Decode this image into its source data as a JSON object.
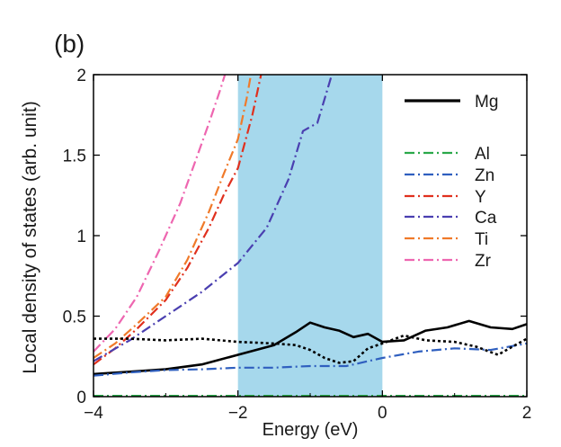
{
  "panel_label": "(b)",
  "chart_data": {
    "type": "line",
    "xlabel": "Energy (eV)",
    "ylabel": "Local density of states (arb. unit)",
    "xlim": [
      -4,
      2
    ],
    "ylim": [
      0,
      2
    ],
    "xticks": [
      -4,
      -2,
      0,
      2
    ],
    "yticks": [
      0,
      0.5,
      1,
      1.5,
      2
    ],
    "xtick_labels": [
      "−4",
      "−2",
      "0",
      "2"
    ],
    "ytick_labels": [
      "0",
      "0.5",
      "1",
      "1.5",
      "2"
    ],
    "highlight_band": {
      "x_start": -2,
      "x_end": 0,
      "color": "#a6d8ec"
    },
    "grid": false,
    "legend_position": "top-right",
    "series": [
      {
        "name": "Mg",
        "color": "#000000",
        "style": "solid",
        "points": [
          [
            -4,
            0.14
          ],
          [
            -3.5,
            0.155
          ],
          [
            -3,
            0.17
          ],
          [
            -2.5,
            0.2
          ],
          [
            -2,
            0.26
          ],
          [
            -1.5,
            0.32
          ],
          [
            -1.2,
            0.4
          ],
          [
            -1,
            0.46
          ],
          [
            -0.8,
            0.43
          ],
          [
            -0.6,
            0.41
          ],
          [
            -0.4,
            0.37
          ],
          [
            -0.2,
            0.39
          ],
          [
            0,
            0.34
          ],
          [
            0.3,
            0.35
          ],
          [
            0.6,
            0.41
          ],
          [
            0.9,
            0.43
          ],
          [
            1.2,
            0.47
          ],
          [
            1.5,
            0.43
          ],
          [
            1.8,
            0.42
          ],
          [
            2,
            0.45
          ]
        ]
      },
      {
        "name": "Al",
        "color": "#2aa84a",
        "style": "dashdot",
        "points": [
          [
            -4,
            0.005
          ],
          [
            -2,
            0.005
          ],
          [
            0,
            0.005
          ],
          [
            2,
            0.005
          ]
        ]
      },
      {
        "name": "Zn",
        "color": "#2f5fbf",
        "style": "dashdot",
        "points": [
          [
            -4,
            0.13
          ],
          [
            -3.5,
            0.15
          ],
          [
            -3,
            0.165
          ],
          [
            -2.5,
            0.17
          ],
          [
            -2,
            0.18
          ],
          [
            -1.5,
            0.18
          ],
          [
            -1,
            0.19
          ],
          [
            -0.5,
            0.19
          ],
          [
            0,
            0.24
          ],
          [
            0.5,
            0.28
          ],
          [
            1,
            0.3
          ],
          [
            1.5,
            0.29
          ],
          [
            2,
            0.33
          ]
        ]
      },
      {
        "name": "Y",
        "color": "#e0301e",
        "style": "dashdot",
        "points": [
          [
            -4,
            0.2
          ],
          [
            -3.7,
            0.3
          ],
          [
            -3.4,
            0.42
          ],
          [
            -3,
            0.6
          ],
          [
            -2.7,
            0.8
          ],
          [
            -2.4,
            1.05
          ],
          [
            -2.2,
            1.25
          ],
          [
            -2,
            1.42
          ],
          [
            -1.8,
            1.75
          ],
          [
            -1.68,
            2.0
          ]
        ]
      },
      {
        "name": "Ca",
        "color": "#4a3fb0",
        "style": "dashdot",
        "points": [
          [
            -4,
            0.22
          ],
          [
            -3.5,
            0.35
          ],
          [
            -3,
            0.5
          ],
          [
            -2.5,
            0.65
          ],
          [
            -2,
            0.83
          ],
          [
            -1.6,
            1.05
          ],
          [
            -1.3,
            1.35
          ],
          [
            -1.1,
            1.65
          ],
          [
            -0.9,
            1.7
          ],
          [
            -0.8,
            1.85
          ],
          [
            -0.7,
            2.0
          ]
        ]
      },
      {
        "name": "Ti",
        "color": "#f07a2a",
        "style": "dashdot",
        "points": [
          [
            -4,
            0.24
          ],
          [
            -3.7,
            0.33
          ],
          [
            -3.4,
            0.45
          ],
          [
            -3,
            0.62
          ],
          [
            -2.7,
            0.85
          ],
          [
            -2.4,
            1.15
          ],
          [
            -2.2,
            1.38
          ],
          [
            -2,
            1.6
          ],
          [
            -1.88,
            1.85
          ],
          [
            -1.82,
            2.0
          ]
        ]
      },
      {
        "name": "Zr",
        "color": "#ee66b0",
        "style": "dashdot",
        "points": [
          [
            -4,
            0.28
          ],
          [
            -3.7,
            0.42
          ],
          [
            -3.4,
            0.62
          ],
          [
            -3.1,
            0.9
          ],
          [
            -2.8,
            1.2
          ],
          [
            -2.6,
            1.45
          ],
          [
            -2.4,
            1.7
          ],
          [
            -2.25,
            1.9
          ],
          [
            -2.18,
            2.0
          ]
        ]
      },
      {
        "name": "",
        "color": "#000000",
        "style": "dotted",
        "points": [
          [
            -4,
            0.36
          ],
          [
            -3.5,
            0.36
          ],
          [
            -3,
            0.35
          ],
          [
            -2.5,
            0.36
          ],
          [
            -2,
            0.34
          ],
          [
            -1.5,
            0.33
          ],
          [
            -1.2,
            0.32
          ],
          [
            -1,
            0.29
          ],
          [
            -0.8,
            0.24
          ],
          [
            -0.6,
            0.21
          ],
          [
            -0.4,
            0.22
          ],
          [
            -0.2,
            0.3
          ],
          [
            0,
            0.33
          ],
          [
            0.3,
            0.38
          ],
          [
            0.6,
            0.35
          ],
          [
            1,
            0.34
          ],
          [
            1.3,
            0.31
          ],
          [
            1.6,
            0.26
          ],
          [
            1.8,
            0.31
          ],
          [
            2,
            0.36
          ]
        ]
      }
    ]
  }
}
